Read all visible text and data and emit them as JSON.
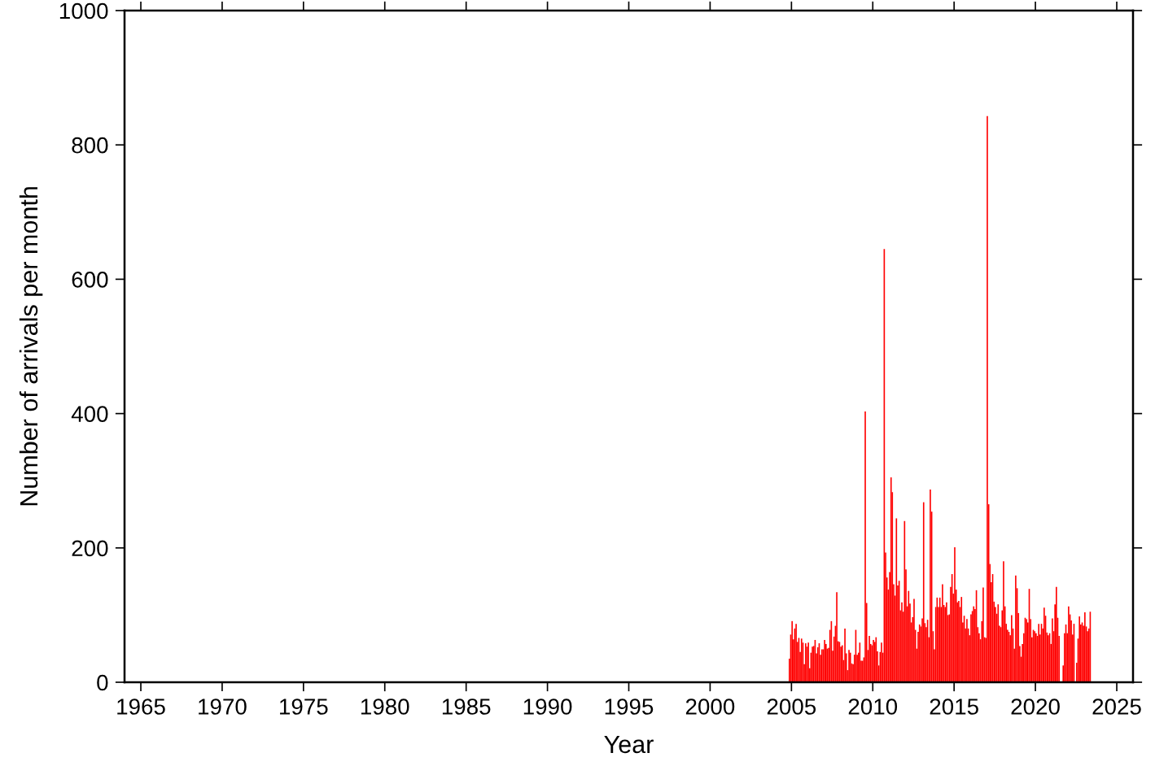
{
  "chart_data": {
    "type": "bar",
    "xlabel": "Year",
    "ylabel": "Number of arrivals per month",
    "color": "#ff0000",
    "xlim": [
      "1964",
      "2026"
    ],
    "xticks": [
      {
        "value": "1965",
        "label": "1965"
      },
      {
        "value": "1970",
        "label": "1970"
      },
      {
        "value": "1975",
        "label": "1975"
      },
      {
        "value": "1980",
        "label": "1980"
      },
      {
        "value": "1985",
        "label": "1985"
      },
      {
        "value": "1990",
        "label": "1990"
      },
      {
        "value": "1995",
        "label": "1995"
      },
      {
        "value": "2000",
        "label": "2000"
      },
      {
        "value": "2005",
        "label": "2005"
      },
      {
        "value": "2010",
        "label": "2010"
      },
      {
        "value": "2015",
        "label": "2015"
      },
      {
        "value": "2020",
        "label": "2020"
      },
      {
        "value": "2025",
        "label": "2025"
      }
    ],
    "ylim": [
      0,
      1000
    ],
    "yticks": [
      0,
      200,
      400,
      600,
      800,
      1000
    ],
    "grid": false,
    "x": [
      "2004-11",
      "2004-12",
      "2005-01",
      "2005-02",
      "2005-03",
      "2005-04",
      "2005-05",
      "2005-06",
      "2005-07",
      "2005-08",
      "2005-09",
      "2005-10",
      "2005-11",
      "2005-12",
      "2006-01",
      "2006-02",
      "2006-03",
      "2006-04",
      "2006-05",
      "2006-06",
      "2006-07",
      "2006-08",
      "2006-09",
      "2006-10",
      "2006-11",
      "2006-12",
      "2007-01",
      "2007-02",
      "2007-03",
      "2007-04",
      "2007-05",
      "2007-06",
      "2007-07",
      "2007-08",
      "2007-09",
      "2007-10",
      "2007-11",
      "2007-12",
      "2008-01",
      "2008-02",
      "2008-03",
      "2008-04",
      "2008-05",
      "2008-06",
      "2008-07",
      "2008-08",
      "2008-09",
      "2008-10",
      "2008-11",
      "2008-12",
      "2009-01",
      "2009-02",
      "2009-03",
      "2009-04",
      "2009-05",
      "2009-06",
      "2009-07",
      "2009-08",
      "2009-09",
      "2009-10",
      "2009-11",
      "2009-12",
      "2010-01",
      "2010-02",
      "2010-03",
      "2010-04",
      "2010-05",
      "2010-06",
      "2010-07",
      "2010-08",
      "2010-09",
      "2010-10",
      "2010-11",
      "2010-12",
      "2011-01",
      "2011-02",
      "2011-03",
      "2011-04",
      "2011-05",
      "2011-06",
      "2011-07",
      "2011-08",
      "2011-09",
      "2011-10",
      "2011-11",
      "2011-12",
      "2012-01",
      "2012-02",
      "2012-03",
      "2012-04",
      "2012-05",
      "2012-06",
      "2012-07",
      "2012-08",
      "2012-09",
      "2012-10",
      "2012-11",
      "2012-12",
      "2013-01",
      "2013-02",
      "2013-03",
      "2013-04",
      "2013-05",
      "2013-06",
      "2013-07",
      "2013-08",
      "2013-09",
      "2013-10",
      "2013-11",
      "2013-12",
      "2014-01",
      "2014-02",
      "2014-03",
      "2014-04",
      "2014-05",
      "2014-06",
      "2014-07",
      "2014-08",
      "2014-09",
      "2014-10",
      "2014-11",
      "2014-12",
      "2015-01",
      "2015-02",
      "2015-03",
      "2015-04",
      "2015-05",
      "2015-06",
      "2015-07",
      "2015-08",
      "2015-09",
      "2015-10",
      "2015-11",
      "2015-12",
      "2016-01",
      "2016-02",
      "2016-03",
      "2016-04",
      "2016-05",
      "2016-06",
      "2016-07",
      "2016-08",
      "2016-09",
      "2016-10",
      "2016-11",
      "2016-12",
      "2017-01",
      "2017-02",
      "2017-03",
      "2017-04",
      "2017-05",
      "2017-06",
      "2017-07",
      "2017-08",
      "2017-09",
      "2017-10",
      "2017-11",
      "2017-12",
      "2018-01",
      "2018-02",
      "2018-03",
      "2018-04",
      "2018-05",
      "2018-06",
      "2018-07",
      "2018-08",
      "2018-09",
      "2018-10",
      "2018-11",
      "2018-12",
      "2019-01",
      "2019-02",
      "2019-03",
      "2019-04",
      "2019-05",
      "2019-06",
      "2019-07",
      "2019-08",
      "2019-09",
      "2019-10",
      "2019-11",
      "2019-12",
      "2020-01",
      "2020-02",
      "2020-03",
      "2020-04",
      "2020-05",
      "2020-06",
      "2020-07",
      "2020-08",
      "2020-09",
      "2020-10",
      "2020-11",
      "2020-12",
      "2021-01",
      "2021-02",
      "2021-03",
      "2021-04",
      "2021-05",
      "2021-06",
      "2021-07",
      "2021-08",
      "2021-09",
      "2021-10",
      "2021-11",
      "2021-12",
      "2022-01",
      "2022-02",
      "2022-03",
      "2022-04",
      "2022-05",
      "2022-06",
      "2022-07",
      "2022-08",
      "2022-09",
      "2022-10",
      "2022-11",
      "2022-12",
      "2023-01",
      "2023-02",
      "2023-03",
      "2023-04",
      "2023-05"
    ],
    "values": [
      35,
      71,
      91,
      64,
      80,
      87,
      60,
      66,
      45,
      65,
      59,
      27,
      58,
      53,
      59,
      21,
      44,
      53,
      54,
      63,
      43,
      52,
      58,
      41,
      49,
      49,
      63,
      57,
      50,
      51,
      78,
      91,
      47,
      68,
      84,
      134,
      61,
      60,
      53,
      55,
      33,
      80,
      43,
      18,
      48,
      44,
      28,
      27,
      41,
      78,
      41,
      44,
      59,
      32,
      32,
      37,
      403,
      118,
      48,
      69,
      57,
      55,
      63,
      60,
      67,
      46,
      25,
      45,
      59,
      44,
      645,
      193,
      156,
      138,
      164,
      305,
      283,
      146,
      129,
      244,
      144,
      151,
      107,
      119,
      105,
      240,
      168,
      113,
      136,
      117,
      89,
      97,
      124,
      78,
      50,
      75,
      86,
      83,
      95,
      268,
      88,
      82,
      93,
      67,
      287,
      254,
      76,
      49,
      112,
      126,
      112,
      126,
      112,
      146,
      115,
      112,
      119,
      100,
      101,
      142,
      161,
      132,
      201,
      138,
      119,
      121,
      112,
      127,
      89,
      99,
      80,
      94,
      80,
      70,
      101,
      106,
      113,
      109,
      137,
      82,
      73,
      64,
      91,
      141,
      67,
      66,
      843,
      265,
      176,
      149,
      161,
      120,
      112,
      102,
      116,
      84,
      82,
      107,
      180,
      113,
      87,
      78,
      75,
      70,
      100,
      80,
      50,
      159,
      140,
      103,
      54,
      38,
      57,
      73,
      96,
      94,
      89,
      139,
      94,
      67,
      78,
      76,
      73,
      69,
      87,
      71,
      87,
      80,
      111,
      99,
      74,
      70,
      73,
      57,
      95,
      76,
      116,
      142,
      96,
      69,
      null,
      null,
      25,
      73,
      86,
      73,
      113,
      101,
      92,
      71,
      87,
      null,
      29,
      65,
      98,
      86,
      89,
      84,
      104,
      83,
      76,
      80,
      105
    ]
  }
}
